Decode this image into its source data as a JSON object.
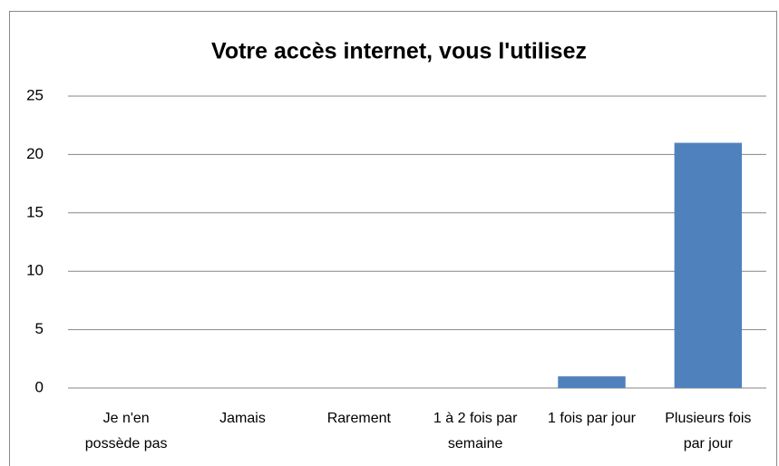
{
  "chart_data": {
    "type": "bar",
    "title": "Votre accès internet, vous l'utilisez",
    "categories": [
      "Je n'en possède pas",
      "Jamais",
      "Rarement",
      "1 à 2 fois par semaine",
      "1 fois par jour",
      "Plusieurs fois par jour"
    ],
    "values": [
      0,
      0,
      0,
      0,
      1,
      21
    ],
    "color": "#4f81bd",
    "ylim": [
      0,
      25
    ],
    "yticks": [
      0,
      5,
      10,
      15,
      20,
      25
    ],
    "grid": true
  }
}
